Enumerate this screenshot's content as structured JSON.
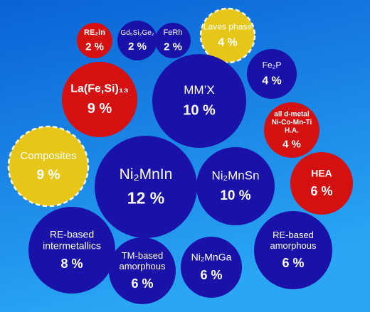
{
  "chart_data": {
    "type": "bubble",
    "items": [
      {
        "name": [
          "RE₂In"
        ],
        "value": 2,
        "value_label": "2 %",
        "color": "#d41010"
      },
      {
        "name": [
          "Gd₅Si₂Ge₂"
        ],
        "value": 2,
        "value_label": "2 %",
        "color": "#1a12a8"
      },
      {
        "name": [
          "FeRh"
        ],
        "value": 2,
        "value_label": "2 %",
        "color": "#1a12a8"
      },
      {
        "name": [
          "Laves  phase"
        ],
        "value": 4,
        "value_label": "4 %",
        "color": "#e6c619"
      },
      {
        "name": [
          "Fe₂P"
        ],
        "value": 4,
        "value_label": "4 %",
        "color": "#1a12a8"
      },
      {
        "name": [
          "La(Fe,Si)₁₃"
        ],
        "value": 9,
        "value_label": "9 %",
        "color": "#d41010"
      },
      {
        "name": [
          "MM’X"
        ],
        "value": 10,
        "value_label": "10 %",
        "color": "#1a12a8"
      },
      {
        "name": [
          "all d-metal",
          "Ni-Co-Mn-Ti",
          "H.A."
        ],
        "value": 4,
        "value_label": "4 %",
        "color": "#d41010"
      },
      {
        "name": [
          "Composites"
        ],
        "value": 9,
        "value_label": "9 %",
        "color": "#e6c619"
      },
      {
        "name": [
          "Ni₂MnIn"
        ],
        "value": 12,
        "value_label": "12 %",
        "color": "#1a12a8"
      },
      {
        "name": [
          "Ni₂MnSn"
        ],
        "value": 10,
        "value_label": "10 %",
        "color": "#1a12a8"
      },
      {
        "name": [
          "HEA"
        ],
        "value": 6,
        "value_label": "6 %",
        "color": "#d41010"
      },
      {
        "name": [
          "RE-based",
          "intermetallics"
        ],
        "value": 8,
        "value_label": "8 %",
        "color": "#1a12a8"
      },
      {
        "name": [
          "TM-based",
          "amorphous"
        ],
        "value": 6,
        "value_label": "6 %",
        "color": "#1a12a8"
      },
      {
        "name": [
          "Ni₂MnGa"
        ],
        "value": 6,
        "value_label": "6 %",
        "color": "#1a12a8"
      },
      {
        "name": [
          "RE-based",
          "amorphous"
        ],
        "value": 6,
        "value_label": "6 %",
        "color": "#1a12a8"
      }
    ]
  }
}
